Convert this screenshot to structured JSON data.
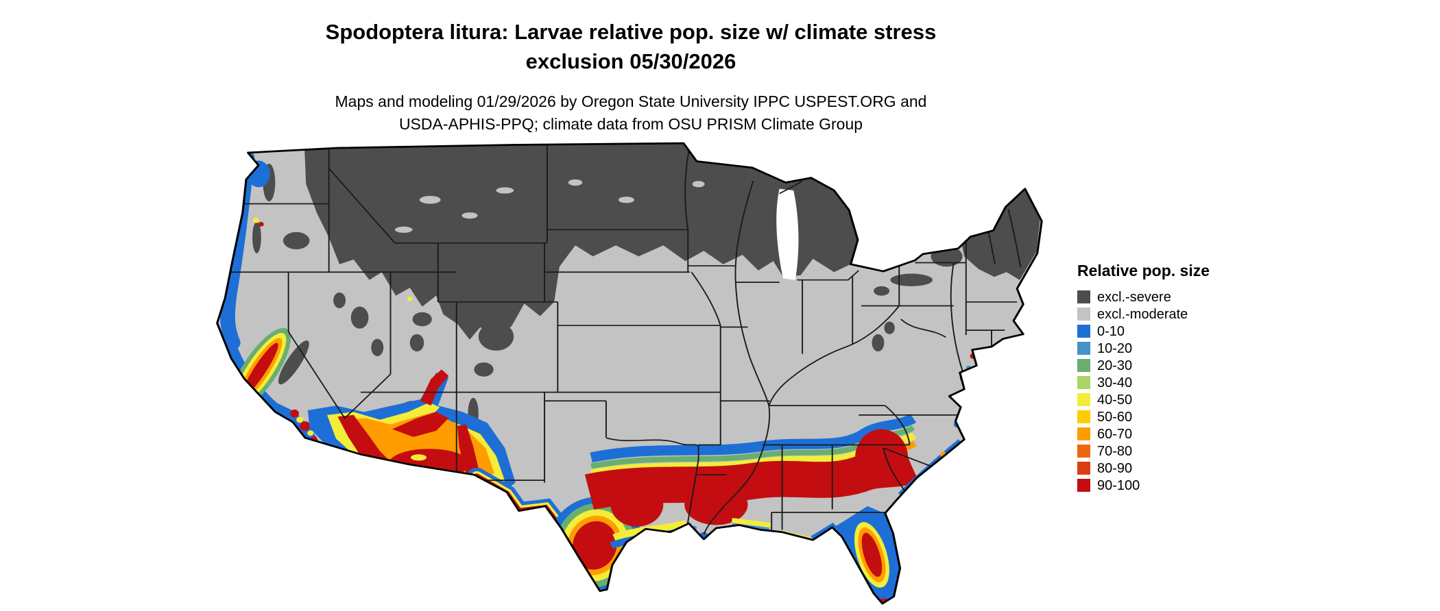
{
  "header": {
    "title_line1": "Spodoptera litura: Larvae relative pop. size w/ climate stress",
    "title_line2": "exclusion 05/30/2026",
    "subtitle_line1": "Maps and modeling 01/29/2026 by Oregon State University IPPC USPEST.ORG and",
    "subtitle_line2": "USDA-APHIS-PPQ; climate data from OSU PRISM Climate Group"
  },
  "legend": {
    "title": "Relative pop. size",
    "items": [
      {
        "label": "excl.-severe",
        "color": "#4D4D4D"
      },
      {
        "label": "excl.-moderate",
        "color": "#C3C3C3"
      },
      {
        "label": "0-10",
        "color": "#1D6FD6"
      },
      {
        "label": "10-20",
        "color": "#4293C7"
      },
      {
        "label": "20-30",
        "color": "#69AE70"
      },
      {
        "label": "30-40",
        "color": "#ACD466"
      },
      {
        "label": "40-50",
        "color": "#F3ED3A"
      },
      {
        "label": "50-60",
        "color": "#FFCC00"
      },
      {
        "label": "60-70",
        "color": "#FF9D00"
      },
      {
        "label": "70-80",
        "color": "#ED6511"
      },
      {
        "label": "80-90",
        "color": "#DD3C12"
      },
      {
        "label": "90-100",
        "color": "#C40D10"
      }
    ]
  }
}
